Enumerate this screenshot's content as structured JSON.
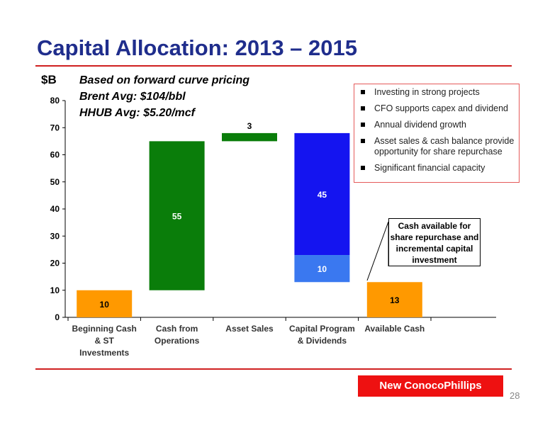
{
  "title": "Capital Allocation: 2013 – 2015",
  "unit_label": "$B",
  "notes": [
    "Based on forward curve pricing",
    "Brent Avg: $104/bbl",
    "HHUB Avg: $5.20/mcf"
  ],
  "bullets": [
    "Investing in strong projects",
    "CFO supports capex and dividend",
    "Annual dividend growth",
    "Asset sales & cash balance provide opportunity for share repurchase",
    "Significant financial capacity"
  ],
  "callout": "Cash available for share repurchase and incremental capital investment",
  "brand": "New ConocoPhillips",
  "page_number": "28",
  "colors": {
    "title": "#1f2d8c",
    "accent_red": "#d02020",
    "orange": "#ff9900",
    "green": "#0a7d0a",
    "blue": "#1414f0",
    "light_blue": "#3a78f0"
  },
  "chart_data": {
    "type": "bar",
    "subtype": "waterfall",
    "categories": [
      "Beginning Cash & ST Investments",
      "Cash from Operations",
      "Asset Sales",
      "Capital Program & Dividends",
      "Available Cash"
    ],
    "category_lines": [
      [
        "Beginning Cash",
        "& ST",
        "Investments"
      ],
      [
        "Cash from",
        "Operations"
      ],
      [
        "Asset Sales"
      ],
      [
        "Capital Program",
        "& Dividends"
      ],
      [
        "Available Cash"
      ]
    ],
    "ylabel": "$B",
    "ylim": [
      0,
      80
    ],
    "yticks": [
      0,
      10,
      20,
      30,
      40,
      50,
      60,
      70,
      80
    ],
    "grid": false,
    "bars": [
      {
        "category": "Beginning Cash & ST Investments",
        "bottom": 0,
        "top": 10,
        "label": "10",
        "color": "#ff9900",
        "label_color": "#000000"
      },
      {
        "category": "Cash from Operations",
        "bottom": 10,
        "top": 65,
        "label": "55",
        "color": "#0a7d0a",
        "label_color": "#ffffff"
      },
      {
        "category": "Asset Sales",
        "bottom": 65,
        "top": 68,
        "label": "3",
        "color": "#0a7d0a",
        "label_color": "#000000",
        "label_above": true
      },
      {
        "category": "Capital Program & Dividends",
        "bottom": 23,
        "top": 68,
        "label": "45",
        "color": "#1414f0",
        "label_color": "#ffffff"
      },
      {
        "category": "Capital Program & Dividends",
        "bottom": 13,
        "top": 23,
        "label": "10",
        "color": "#3a78f0",
        "label_color": "#ffffff"
      },
      {
        "category": "Available Cash",
        "bottom": 0,
        "top": 13,
        "label": "13",
        "color": "#ff9900",
        "label_color": "#000000"
      }
    ]
  }
}
